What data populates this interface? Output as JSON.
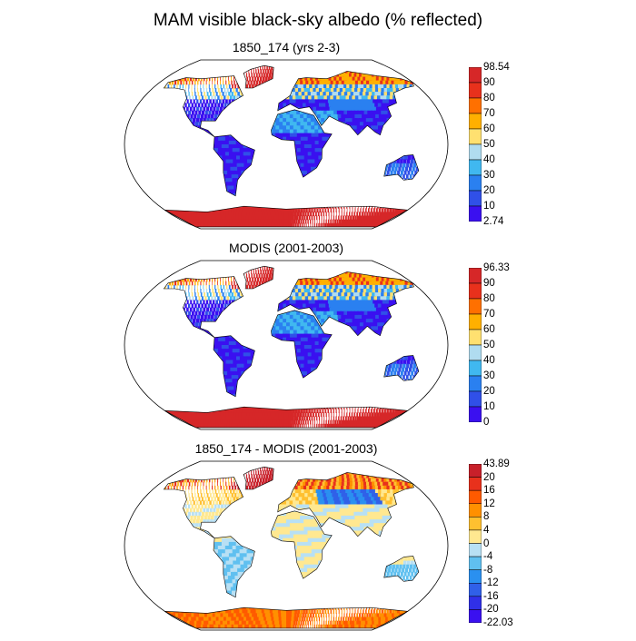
{
  "main_title": "MAM visible black-sky albedo (% reflected)",
  "panels": [
    {
      "title": "1850_174 (yrs 2-3)",
      "variant": "abs",
      "colorbar": {
        "labels": [
          "98.54",
          "90",
          "80",
          "70",
          "60",
          "50",
          "40",
          "30",
          "20",
          "10",
          "2.74"
        ],
        "colors": [
          "#d62728",
          "#e8311c",
          "#ff7000",
          "#ffb000",
          "#ffe070",
          "#b0dcf0",
          "#40b8f0",
          "#2a80f0",
          "#3050e8",
          "#3a10f0"
        ]
      }
    },
    {
      "title": "MODIS (2001-2003)",
      "variant": "abs",
      "colorbar": {
        "labels": [
          "96.33",
          "90",
          "80",
          "70",
          "60",
          "50",
          "40",
          "30",
          "20",
          "10",
          "0"
        ],
        "colors": [
          "#d62728",
          "#e8311c",
          "#ff7000",
          "#ffb000",
          "#ffe070",
          "#b0dcf0",
          "#40b8f0",
          "#2a80f0",
          "#3050e8",
          "#3a10f0"
        ]
      }
    },
    {
      "title": "1850_174 - MODIS (2001-2003)",
      "variant": "diff",
      "colorbar": {
        "labels": [
          "43.89",
          "20",
          "16",
          "12",
          "8",
          "4",
          "0",
          "-4",
          "-8",
          "-12",
          "-16",
          "-20",
          "-22.03"
        ],
        "colors": [
          "#c8202a",
          "#e8311c",
          "#ff5a00",
          "#ff9000",
          "#ffc030",
          "#ffe890",
          "#b8e0f4",
          "#60c0f0",
          "#2a90f0",
          "#3060e8",
          "#3030e8",
          "#3a10f0"
        ]
      }
    }
  ]
}
